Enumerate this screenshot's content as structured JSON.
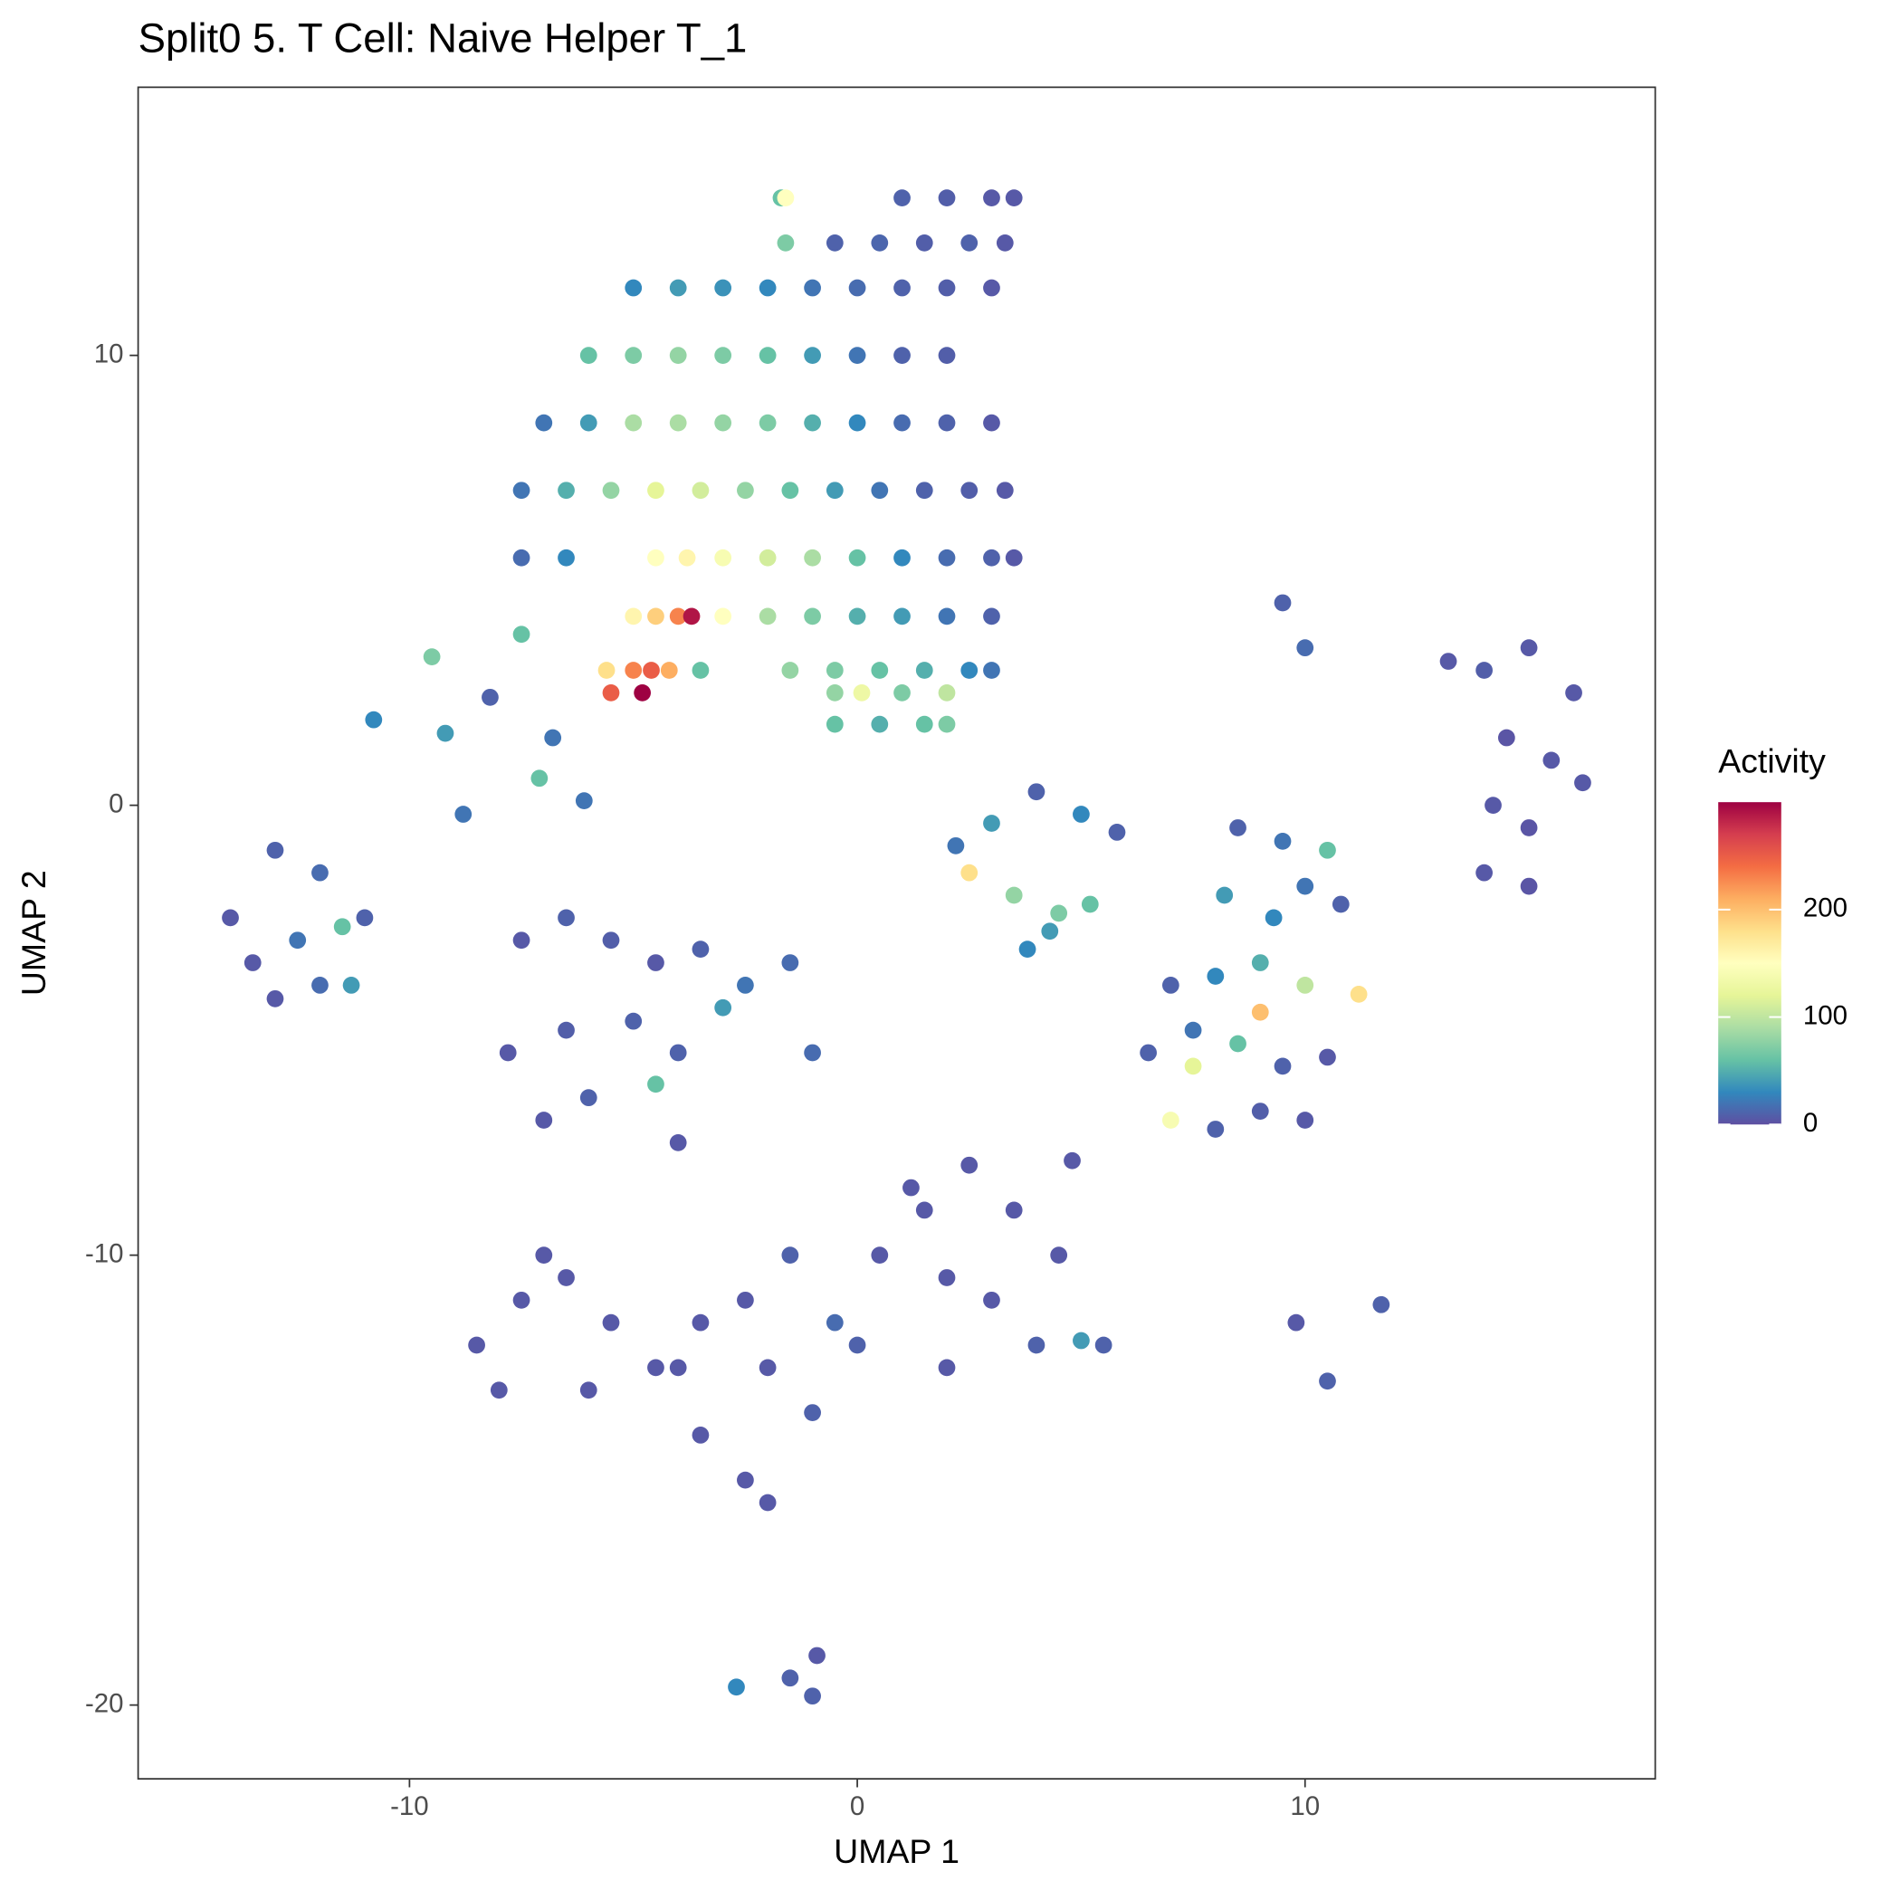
{
  "chart_data": {
    "type": "scatter",
    "title": "Split0 5. T Cell: Naive Helper T_1",
    "xlabel": "UMAP 1",
    "ylabel": "UMAP 2",
    "legend_title": "Activity",
    "xlim": [
      -16.06,
      17.82
    ],
    "ylim": [
      -21.64,
      15.96
    ],
    "xticks": [
      -10,
      0,
      10
    ],
    "yticks": [
      -20,
      -10,
      0,
      10
    ],
    "grid": false,
    "colorlim": [
      0,
      300
    ],
    "colorticks": [
      0,
      100,
      200
    ],
    "colorscale": [
      "#5E4FA2",
      "#3288BD",
      "#66C2A5",
      "#ABDDA4",
      "#E6F598",
      "#FFFFBF",
      "#FEE08B",
      "#FDAE61",
      "#F46D43",
      "#D53E4F",
      "#9E0142"
    ],
    "x": [
      -5,
      -4,
      -3,
      -2,
      -1,
      0,
      1,
      2,
      3,
      -1.7,
      -1.6,
      1,
      2,
      3,
      3.5,
      -1.6,
      -0.5,
      0.5,
      1.5,
      2.5,
      3.3,
      -6,
      -5,
      -4,
      -3,
      -2,
      -1,
      0,
      1,
      2,
      -7,
      -6,
      -5,
      -4,
      -3,
      -2,
      -1,
      0,
      1,
      2,
      3,
      -7.5,
      -6.5,
      -5.5,
      -4.5,
      -3.5,
      -2.5,
      -1.5,
      -0.5,
      0.5,
      1.5,
      2.5,
      3.3,
      -7.5,
      -6.5,
      -4.5,
      -3.8,
      -3,
      -2,
      -1,
      0,
      1,
      2,
      3,
      3.5,
      -5,
      -4.5,
      -4,
      -3.7,
      -3,
      -2,
      -1,
      0,
      1,
      2,
      3,
      -5.6,
      -5,
      -4.6,
      -4.2,
      -3.5,
      -1.5,
      -0.5,
      0.5,
      1.5,
      2.5,
      3,
      -5.5,
      -4.8,
      -0.5,
      0.1,
      1,
      2,
      -0.5,
      0.5,
      1.5,
      2,
      -7.5,
      -9.5,
      -10.8,
      -9.2,
      -8.2,
      -7.1,
      -6.8,
      -6.1,
      -8.8,
      13.2,
      14,
      15,
      16,
      14.5,
      15.5,
      14.2,
      15,
      16.2,
      14,
      15,
      9.5,
      10,
      -14,
      -13,
      -12,
      -11,
      -13.5,
      -12.5,
      -11.5,
      -13,
      -12,
      -11.3,
      -7.5,
      -6.5,
      -5.5,
      -4.5,
      -3.5,
      -2.5,
      -1.5,
      -7.8,
      -6.5,
      -5,
      -4,
      -3,
      -1,
      -7,
      -6,
      -4.5,
      -4,
      2.2,
      3,
      4,
      5,
      5.8,
      2.5,
      3.5,
      4.5,
      5.2,
      3.8,
      4.3,
      8.5,
      9.5,
      10.5,
      8.2,
      9.3,
      10,
      10.8,
      7,
      8,
      9,
      10,
      11.2,
      6.5,
      7.5,
      8.5,
      9.5,
      10.5,
      7,
      8,
      9,
      10,
      7.5,
      9,
      -8.5,
      -7.5,
      -6.5,
      -5.5,
      -4.5,
      -3.5,
      -2.5,
      -1.5,
      -0.5,
      0.5,
      1.5,
      2.5,
      3.5,
      4.5,
      5.5,
      -8,
      -6,
      -4,
      -2,
      0,
      2,
      4,
      -3.5,
      -2.5,
      -2,
      1.2,
      2,
      3,
      -7,
      -1,
      4.8,
      5,
      -2.7,
      -1.5,
      9.8,
      10.5,
      11.7,
      -1,
      -0.9
    ],
    "y": [
      11.5,
      11.5,
      11.5,
      11.5,
      11.5,
      11.5,
      11.5,
      11.5,
      11.5,
      13.5,
      13.5,
      13.5,
      13.5,
      13.5,
      13.5,
      12.5,
      12.5,
      12.5,
      12.5,
      12.5,
      12.5,
      10,
      10,
      10,
      10,
      10,
      10,
      10,
      10,
      10,
      8.5,
      8.5,
      8.5,
      8.5,
      8.5,
      8.5,
      8.5,
      8.5,
      8.5,
      8.5,
      8.5,
      7,
      7,
      7,
      7,
      7,
      7,
      7,
      7,
      7,
      7,
      7,
      7,
      5.5,
      5.5,
      5.5,
      5.5,
      5.5,
      5.5,
      5.5,
      5.5,
      5.5,
      5.5,
      5.5,
      5.5,
      4.2,
      4.2,
      4.2,
      4.2,
      4.2,
      4.2,
      4.2,
      4.2,
      4.2,
      4.2,
      4.2,
      3,
      3,
      3,
      3,
      3,
      3,
      3,
      3,
      3,
      3,
      3,
      2.5,
      2.5,
      2.5,
      2.5,
      2.5,
      2.5,
      1.8,
      1.8,
      1.8,
      1.8,
      3.8,
      3.3,
      1.9,
      1.6,
      2.4,
      0.6,
      1.5,
      0.1,
      -0.2,
      3.2,
      3,
      3.5,
      2.5,
      1.5,
      1,
      0,
      -0.5,
      0.5,
      -1.5,
      -1.8,
      4.5,
      3.5,
      -2.5,
      -1,
      -1.5,
      -2.5,
      -3.5,
      -3,
      -2.7,
      -4.3,
      -4,
      -4,
      -3,
      -2.5,
      -3,
      -3.5,
      -3.2,
      -4,
      -3.5,
      -5.5,
      -5,
      -4.8,
      -5.5,
      -4.5,
      -5.5,
      -7,
      -6.5,
      -6.2,
      -7.5,
      -0.9,
      -0.4,
      0.3,
      -0.2,
      -0.6,
      -1.5,
      -2,
      -2.4,
      -2.2,
      -3.2,
      -2.8,
      -0.5,
      -0.8,
      -1,
      -2,
      -2.5,
      -1.8,
      -2.2,
      -4,
      -3.8,
      -3.5,
      -4,
      -4.2,
      -5.5,
      -5,
      -5.3,
      -5.8,
      -5.6,
      -7,
      -7.2,
      -6.8,
      -7,
      -5.8,
      -4.6,
      -12,
      -11,
      -10.5,
      -11.5,
      -12.5,
      -11.5,
      -11,
      -10,
      -11.5,
      -10,
      -9,
      -8,
      -9,
      -10,
      -12,
      -13,
      -13,
      -12.5,
      -12.5,
      -12,
      -12.5,
      -12,
      -14,
      -15,
      -15.5,
      -8.5,
      -10.5,
      -11,
      -10,
      -13.5,
      -7.9,
      -11.9,
      -19.6,
      -19.4,
      -11.5,
      -12.8,
      -11.1,
      -19.8,
      -18.9
    ],
    "activity": [
      30,
      40,
      35,
      30,
      20,
      15,
      10,
      8,
      5,
      60,
      150,
      10,
      8,
      5,
      5,
      70,
      10,
      12,
      8,
      10,
      5,
      60,
      70,
      80,
      70,
      60,
      40,
      20,
      10,
      8,
      20,
      40,
      90,
      90,
      80,
      70,
      50,
      30,
      15,
      10,
      5,
      20,
      50,
      80,
      120,
      110,
      80,
      60,
      40,
      20,
      10,
      8,
      5,
      15,
      30,
      150,
      160,
      140,
      110,
      90,
      60,
      30,
      15,
      10,
      5,
      160,
      190,
      230,
      290,
      150,
      90,
      70,
      50,
      40,
      20,
      10,
      180,
      230,
      250,
      210,
      60,
      80,
      70,
      60,
      50,
      30,
      20,
      250,
      300,
      80,
      130,
      70,
      100,
      60,
      50,
      60,
      70,
      60,
      70,
      30,
      40,
      10,
      60,
      20,
      20,
      20,
      5,
      8,
      5,
      5,
      3,
      5,
      5,
      3,
      5,
      5,
      3,
      10,
      15,
      5,
      10,
      15,
      10,
      5,
      20,
      60,
      5,
      15,
      40,
      5,
      10,
      8,
      5,
      10,
      20,
      15,
      5,
      8,
      10,
      10,
      40,
      15,
      5,
      10,
      60,
      5,
      20,
      40,
      10,
      30,
      10,
      180,
      80,
      70,
      60,
      30,
      40,
      10,
      20,
      60,
      40,
      30,
      20,
      10,
      10,
      30,
      50,
      100,
      180,
      10,
      20,
      60,
      10,
      5,
      140,
      10,
      8,
      5,
      120,
      200,
      5,
      5,
      5,
      5,
      5,
      5,
      5,
      10,
      15,
      5,
      5,
      5,
      5,
      5,
      10,
      5,
      5,
      5,
      5,
      10,
      5,
      10,
      5,
      5,
      5,
      5,
      5,
      5,
      5,
      10,
      5,
      40,
      30,
      10,
      5,
      10,
      10,
      10,
      5
    ]
  }
}
